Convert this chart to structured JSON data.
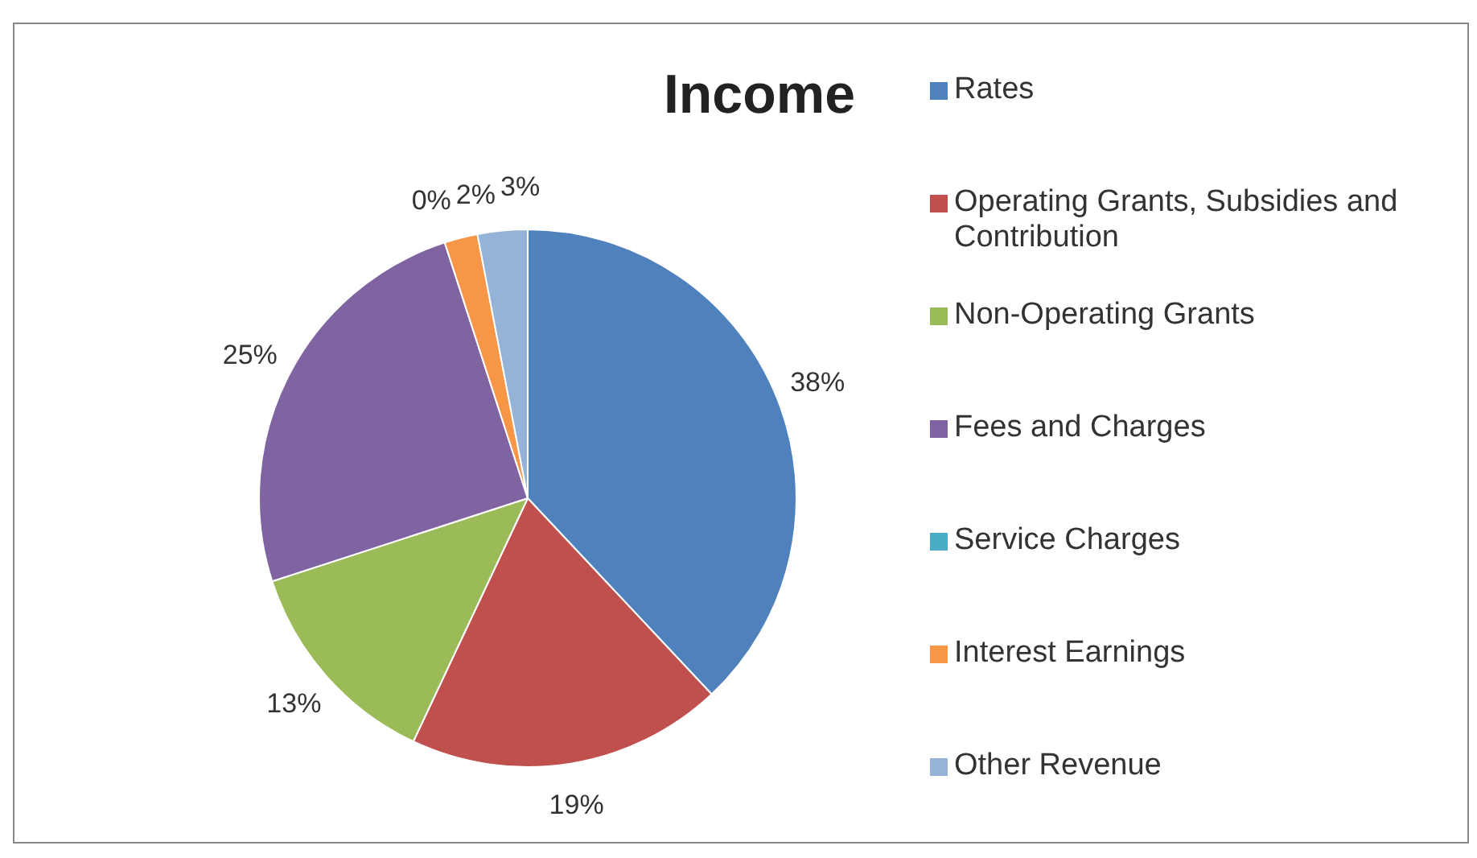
{
  "chart_data": {
    "type": "pie",
    "title": "Income",
    "categories": [
      "Rates",
      "Operating Grants, Subsidies and Contribution",
      "Non-Operating Grants",
      "Fees and Charges",
      "Service Charges",
      "Interest Earnings",
      "Other Revenue"
    ],
    "values": [
      38,
      19,
      13,
      25,
      0,
      2,
      3
    ],
    "value_labels": [
      "38%",
      "19%",
      "13%",
      "25%",
      "0%",
      "2%",
      "3%"
    ],
    "colors": [
      "#4f81bd",
      "#c0504d",
      "#9bbb59",
      "#8064a2",
      "#4bacc6",
      "#f79646",
      "#95b3d7"
    ],
    "legend": "right"
  }
}
